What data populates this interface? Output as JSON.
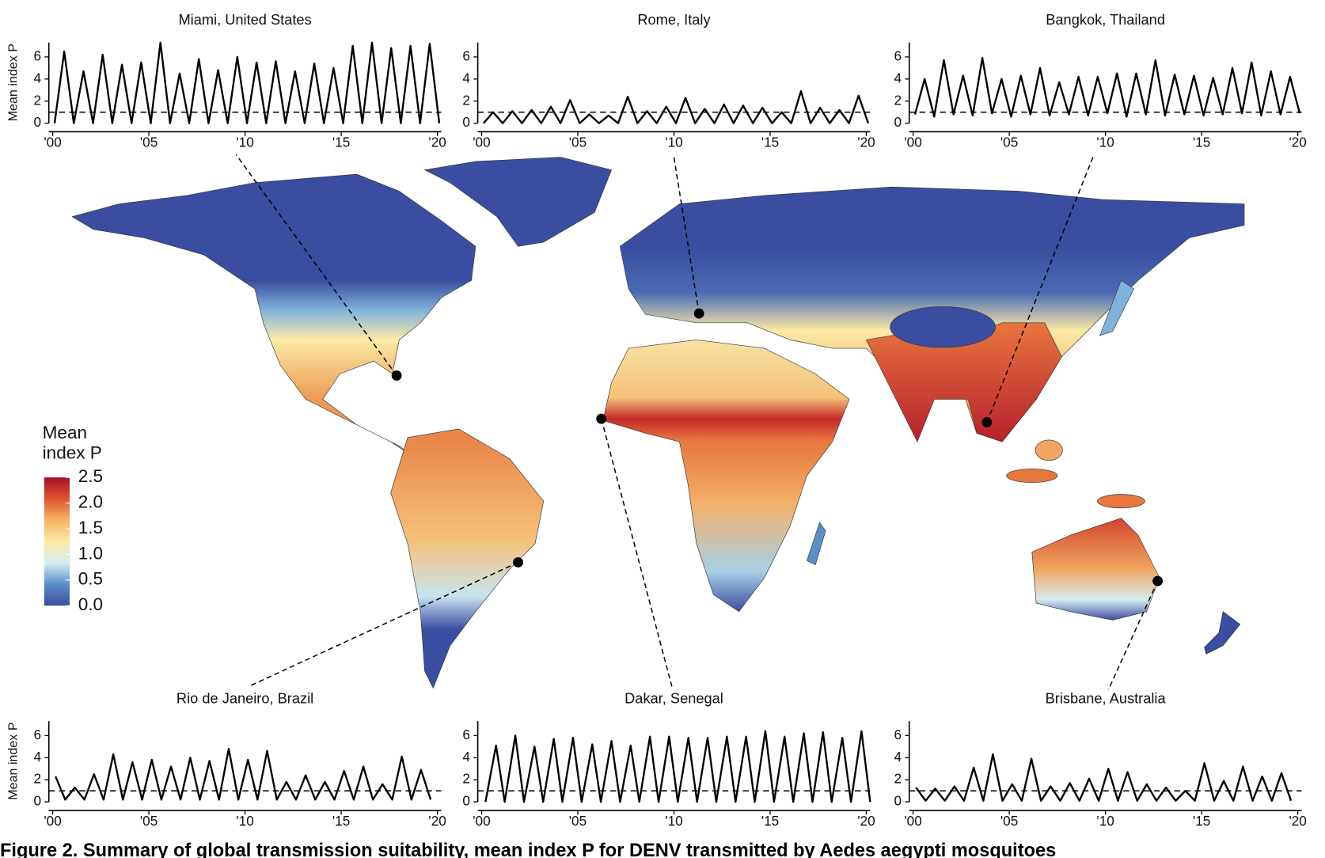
{
  "chart_data": [
    {
      "type": "line",
      "title": "Miami, United States",
      "ylabel": "Mean index P",
      "color": "#000000",
      "threshold": 1,
      "x": [
        2000.1,
        2000.6,
        2001.1,
        2001.6,
        2002.1,
        2002.6,
        2003.1,
        2003.6,
        2004.1,
        2004.6,
        2005.1,
        2005.6,
        2006.1,
        2006.6,
        2007.1,
        2007.6,
        2008.1,
        2008.6,
        2009.1,
        2009.6,
        2010.1,
        2010.6,
        2011.1,
        2011.6,
        2012.1,
        2012.6,
        2013.1,
        2013.6,
        2014.1,
        2014.6,
        2015.1,
        2015.6,
        2016.1,
        2016.6,
        2017.1,
        2017.6,
        2018.1,
        2018.6,
        2019.1,
        2019.6,
        2020.1
      ],
      "values": [
        0,
        6.5,
        0,
        4.7,
        0,
        6.2,
        0,
        5.3,
        0,
        5.5,
        0,
        7.3,
        0,
        4.5,
        0,
        5.8,
        0,
        4.8,
        0,
        6.0,
        0,
        5.5,
        0,
        5.6,
        0,
        4.7,
        0,
        5.4,
        0,
        5.0,
        0,
        7.0,
        0,
        7.3,
        0,
        6.8,
        0,
        7.0,
        0,
        7.2,
        0
      ],
      "xlim": [
        1999.8,
        2020.2
      ],
      "ylim": [
        0,
        7.3
      ],
      "yticks": [
        0,
        2,
        4,
        6
      ],
      "xticks": [
        {
          "value": 2000,
          "label": "'00"
        },
        {
          "value": 2005,
          "label": "'05"
        },
        {
          "value": 2010,
          "label": "'10"
        },
        {
          "value": 2015,
          "label": "'15"
        },
        {
          "value": 2020,
          "label": "'20"
        }
      ]
    },
    {
      "type": "line",
      "title": "Rome, Italy",
      "color": "#000000",
      "threshold": 1,
      "x": [
        2000.1,
        2000.6,
        2001.1,
        2001.6,
        2002.1,
        2002.6,
        2003.1,
        2003.6,
        2004.1,
        2004.6,
        2005.1,
        2005.6,
        2006.1,
        2006.6,
        2007.1,
        2007.6,
        2008.1,
        2008.6,
        2009.1,
        2009.6,
        2010.1,
        2010.6,
        2011.1,
        2011.6,
        2012.1,
        2012.6,
        2013.1,
        2013.6,
        2014.1,
        2014.6,
        2015.1,
        2015.6,
        2016.1,
        2016.6,
        2017.1,
        2017.6,
        2018.1,
        2018.6,
        2019.1,
        2019.6,
        2020.1
      ],
      "values": [
        0,
        1.0,
        0,
        1.1,
        0,
        1.2,
        0,
        1.5,
        0,
        2.1,
        0,
        0.8,
        0,
        0.7,
        0,
        2.4,
        0,
        1.1,
        0,
        1.5,
        0,
        2.3,
        0,
        1.3,
        0,
        1.7,
        0,
        1.6,
        0,
        1.4,
        0,
        1.0,
        0,
        2.9,
        0,
        1.4,
        0,
        1.2,
        0,
        2.5,
        0
      ],
      "xlim": [
        1999.8,
        2020.2
      ],
      "ylim": [
        0,
        7.3
      ],
      "yticks": [
        0,
        2,
        4,
        6
      ],
      "xticks": [
        {
          "value": 2000,
          "label": "'00"
        },
        {
          "value": 2005,
          "label": "'05"
        },
        {
          "value": 2010,
          "label": "'10"
        },
        {
          "value": 2015,
          "label": "'15"
        },
        {
          "value": 2020,
          "label": "'20"
        }
      ]
    },
    {
      "type": "line",
      "title": "Bangkok, Thailand",
      "color": "#000000",
      "threshold": 1,
      "x": [
        2000.1,
        2000.6,
        2001.1,
        2001.6,
        2002.1,
        2002.6,
        2003.1,
        2003.6,
        2004.1,
        2004.6,
        2005.1,
        2005.6,
        2006.1,
        2006.6,
        2007.1,
        2007.6,
        2008.1,
        2008.6,
        2009.1,
        2009.6,
        2010.1,
        2010.6,
        2011.1,
        2011.6,
        2012.1,
        2012.6,
        2013.1,
        2013.6,
        2014.1,
        2014.6,
        2015.1,
        2015.6,
        2016.1,
        2016.6,
        2017.1,
        2017.6,
        2018.1,
        2018.6,
        2019.1,
        2019.6,
        2020.1
      ],
      "values": [
        0.8,
        4.0,
        0.6,
        5.7,
        0.8,
        4.3,
        0.7,
        5.9,
        0.9,
        4.0,
        0.6,
        4.3,
        0.8,
        5.0,
        0.7,
        3.7,
        0.8,
        4.2,
        0.7,
        4.2,
        0.9,
        4.5,
        0.6,
        4.5,
        0.8,
        5.7,
        0.7,
        4.4,
        0.8,
        4.3,
        0.7,
        4.1,
        0.8,
        5.0,
        0.9,
        5.5,
        0.7,
        4.7,
        0.8,
        4.2,
        0.9
      ],
      "xlim": [
        1999.8,
        2020.2
      ],
      "ylim": [
        0,
        7.3
      ],
      "yticks": [
        0,
        2,
        4,
        6
      ],
      "xticks": [
        {
          "value": 2000,
          "label": "'00"
        },
        {
          "value": 2005,
          "label": "'05"
        },
        {
          "value": 2010,
          "label": "'10"
        },
        {
          "value": 2015,
          "label": "'15"
        },
        {
          "value": 2020,
          "label": "'20"
        }
      ]
    },
    {
      "type": "line",
      "title": "Rio de Janeiro, Brazil",
      "ylabel": "Mean index P",
      "color": "#000000",
      "threshold": 1,
      "x": [
        2000.15,
        2000.65,
        2001.15,
        2001.65,
        2002.15,
        2002.65,
        2003.15,
        2003.65,
        2004.15,
        2004.65,
        2005.15,
        2005.65,
        2006.15,
        2006.65,
        2007.15,
        2007.65,
        2008.15,
        2008.65,
        2009.15,
        2009.65,
        2010.15,
        2010.65,
        2011.15,
        2011.65,
        2012.15,
        2012.65,
        2013.15,
        2013.65,
        2014.15,
        2014.65,
        2015.15,
        2015.65,
        2016.15,
        2016.65,
        2017.15,
        2017.65,
        2018.15,
        2018.65,
        2019.15,
        2019.65
      ],
      "values": [
        2.3,
        0.2,
        1.3,
        0.2,
        2.5,
        0.2,
        4.3,
        0.2,
        3.6,
        0.2,
        3.8,
        0.2,
        3.2,
        0.2,
        4.0,
        0.2,
        3.7,
        0.2,
        4.8,
        0.2,
        3.8,
        0.2,
        4.6,
        0.2,
        1.8,
        0.2,
        2.4,
        0.2,
        1.8,
        0.2,
        2.8,
        0.2,
        3.2,
        0.2,
        1.6,
        0.2,
        4.1,
        0.2,
        2.9,
        0.2
      ],
      "xlim": [
        1999.8,
        2020.2
      ],
      "ylim": [
        0,
        7.3
      ],
      "yticks": [
        0,
        2,
        4,
        6
      ],
      "xticks": [
        {
          "value": 2000,
          "label": "'00"
        },
        {
          "value": 2005,
          "label": "'05"
        },
        {
          "value": 2010,
          "label": "'10"
        },
        {
          "value": 2015,
          "label": "'15"
        },
        {
          "value": 2020,
          "label": "'20"
        }
      ]
    },
    {
      "type": "line",
      "title": "Dakar, Senegal",
      "color": "#000000",
      "threshold": 1,
      "x": [
        2000.2,
        2000.75,
        2001.2,
        2001.75,
        2002.2,
        2002.75,
        2003.2,
        2003.75,
        2004.2,
        2004.75,
        2005.2,
        2005.75,
        2006.2,
        2006.75,
        2007.2,
        2007.75,
        2008.2,
        2008.75,
        2009.2,
        2009.75,
        2010.2,
        2010.75,
        2011.2,
        2011.75,
        2012.2,
        2012.75,
        2013.2,
        2013.75,
        2014.2,
        2014.75,
        2015.2,
        2015.75,
        2016.2,
        2016.75,
        2017.2,
        2017.75,
        2018.2,
        2018.75,
        2019.2,
        2019.75,
        2020.2
      ],
      "values": [
        0,
        5.1,
        0,
        6.0,
        0,
        5.0,
        0,
        5.7,
        0,
        5.8,
        0,
        5.2,
        0,
        5.5,
        0,
        5.1,
        0,
        5.9,
        0,
        5.9,
        0,
        5.8,
        0,
        5.8,
        0,
        5.9,
        0,
        5.9,
        0,
        6.4,
        0,
        5.9,
        0,
        6.2,
        0,
        6.3,
        0,
        5.8,
        0,
        6.4,
        0
      ],
      "xlim": [
        1999.8,
        2020.2
      ],
      "ylim": [
        0,
        7.3
      ],
      "yticks": [
        0,
        2,
        4,
        6
      ],
      "xticks": [
        {
          "value": 2000,
          "label": "'00"
        },
        {
          "value": 2005,
          "label": "'05"
        },
        {
          "value": 2010,
          "label": "'10"
        },
        {
          "value": 2015,
          "label": "'15"
        },
        {
          "value": 2020,
          "label": "'20"
        }
      ]
    },
    {
      "type": "line",
      "title": "Brisbane, Australia",
      "color": "#000000",
      "threshold": 1,
      "x": [
        2000.15,
        2000.65,
        2001.15,
        2001.65,
        2002.15,
        2002.65,
        2003.15,
        2003.65,
        2004.15,
        2004.65,
        2005.15,
        2005.65,
        2006.15,
        2006.65,
        2007.15,
        2007.65,
        2008.15,
        2008.65,
        2009.15,
        2009.65,
        2010.15,
        2010.65,
        2011.15,
        2011.65,
        2012.15,
        2012.65,
        2013.15,
        2013.65,
        2014.15,
        2014.65,
        2015.15,
        2015.65,
        2016.15,
        2016.65,
        2017.15,
        2017.65,
        2018.15,
        2018.65,
        2019.15,
        2019.65
      ],
      "values": [
        1.3,
        0.1,
        1.2,
        0.1,
        1.4,
        0.1,
        3.1,
        0.1,
        4.3,
        0.1,
        1.6,
        0.1,
        3.9,
        0.1,
        1.4,
        0.1,
        1.7,
        0.1,
        2.1,
        0.1,
        3.0,
        0.1,
        2.7,
        0.1,
        1.6,
        0.1,
        1.3,
        0.1,
        1.0,
        0.1,
        3.5,
        0.1,
        1.9,
        0.1,
        3.2,
        0.1,
        2.3,
        0.1,
        2.6,
        0.1
      ],
      "xlim": [
        1999.8,
        2020.2
      ],
      "ylim": [
        0,
        7.3
      ],
      "yticks": [
        0,
        2,
        4,
        6
      ],
      "xticks": [
        {
          "value": 2000,
          "label": "'00"
        },
        {
          "value": 2005,
          "label": "'05"
        },
        {
          "value": 2010,
          "label": "'10"
        },
        {
          "value": 2015,
          "label": "'15"
        },
        {
          "value": 2020,
          "label": "'20"
        }
      ]
    }
  ],
  "colorbar": {
    "title": "Mean index P",
    "lim": [
      0,
      2.5
    ],
    "colors": [
      "#3b4da0",
      "#5a8ecb",
      "#d6ecf2",
      "#fbeaa6",
      "#f5b364",
      "#e0552f",
      "#a50f27"
    ],
    "ticks": [
      {
        "value": 0,
        "label": "0.0"
      },
      {
        "value": 0.5,
        "label": "0.5"
      },
      {
        "value": 1,
        "label": "1.0"
      },
      {
        "value": 1.5,
        "label": "1.5"
      },
      {
        "value": 2,
        "label": "2.0"
      },
      {
        "value": 2.5,
        "label": "2.5"
      }
    ]
  },
  "caption": "Figure 2. Summary of global transmission suitability, mean index P for DENV transmitted by Aedes aegypti mosquitoes"
}
